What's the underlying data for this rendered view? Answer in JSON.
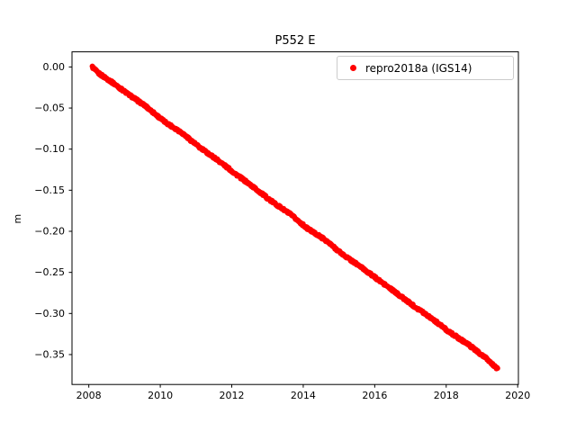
{
  "chart_data": {
    "type": "scatter",
    "title": "P552 E",
    "xlabel": "",
    "ylabel": "m",
    "xlim": [
      2007.53,
      2020.02
    ],
    "ylim": [
      -0.3864,
      0.0184
    ],
    "grid": false,
    "legend_position": "upper right",
    "xticks": [
      2008,
      2010,
      2012,
      2014,
      2016,
      2018,
      2020
    ],
    "xtick_labels": [
      "2008",
      "2010",
      "2012",
      "2014",
      "2016",
      "2018",
      "2020"
    ],
    "yticks": [
      0.0,
      -0.05,
      -0.1,
      -0.15,
      -0.2,
      -0.25,
      -0.3,
      -0.35
    ],
    "ytick_labels": [
      "0.00",
      "−0.05",
      "−0.10",
      "−0.15",
      "−0.20",
      "−0.25",
      "−0.30",
      "−0.35"
    ],
    "legend": [
      {
        "label": "repro2018a (IGS14)",
        "color": "#ff0000",
        "marker": "dot"
      }
    ],
    "series": [
      {
        "name": "repro2018a (IGS14)",
        "color": "#ff0000",
        "points": [
          [
            2008.1,
            0.0
          ],
          [
            2008.25,
            -0.007
          ],
          [
            2008.6,
            -0.017
          ],
          [
            2009.1,
            -0.033
          ],
          [
            2009.6,
            -0.048
          ],
          [
            2010.1,
            -0.066
          ],
          [
            2010.6,
            -0.08
          ],
          [
            2011.1,
            -0.098
          ],
          [
            2011.6,
            -0.113
          ],
          [
            2012.1,
            -0.13
          ],
          [
            2012.6,
            -0.146
          ],
          [
            2013.1,
            -0.163
          ],
          [
            2013.6,
            -0.178
          ],
          [
            2014.1,
            -0.196
          ],
          [
            2014.6,
            -0.21
          ],
          [
            2015.1,
            -0.228
          ],
          [
            2015.6,
            -0.243
          ],
          [
            2016.1,
            -0.259
          ],
          [
            2016.6,
            -0.275
          ],
          [
            2017.1,
            -0.291
          ],
          [
            2017.6,
            -0.306
          ],
          [
            2018.1,
            -0.323
          ],
          [
            2018.6,
            -0.337
          ],
          [
            2019.1,
            -0.354
          ],
          [
            2019.45,
            -0.368
          ]
        ]
      }
    ],
    "colors": {
      "axes": "#000000",
      "background": "#ffffff",
      "series": "#ff0000"
    }
  }
}
